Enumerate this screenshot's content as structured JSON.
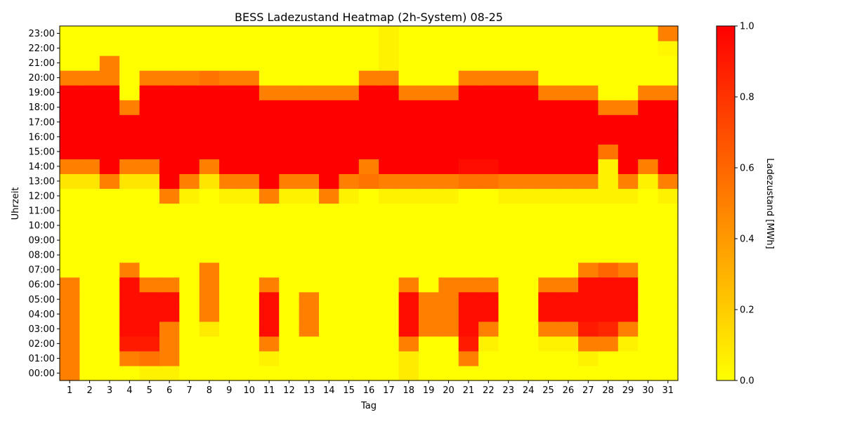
{
  "chart_data": {
    "type": "heatmap",
    "title": "BESS Ladezustand Heatmap (2h-System) 08-25",
    "xlabel": "Tag",
    "ylabel": "Uhrzeit",
    "x_categories": [
      "1",
      "2",
      "3",
      "4",
      "5",
      "6",
      "7",
      "8",
      "9",
      "10",
      "11",
      "12",
      "13",
      "14",
      "15",
      "16",
      "17",
      "18",
      "19",
      "20",
      "21",
      "22",
      "23",
      "24",
      "25",
      "26",
      "27",
      "28",
      "29",
      "30",
      "31"
    ],
    "y_categories": [
      "00:00",
      "01:00",
      "02:00",
      "03:00",
      "04:00",
      "05:00",
      "06:00",
      "07:00",
      "08:00",
      "09:00",
      "10:00",
      "11:00",
      "12:00",
      "13:00",
      "14:00",
      "15:00",
      "16:00",
      "17:00",
      "18:00",
      "19:00",
      "20:00",
      "21:00",
      "22:00",
      "23:00"
    ],
    "colorbar": {
      "label": "Ladezustand [MWh]",
      "range": [
        0.0,
        1.0
      ],
      "ticks": [
        "0.0",
        "0.2",
        "0.4",
        "0.6",
        "0.8",
        "1.0"
      ],
      "colormap": [
        "#ffff00",
        "#ff8000",
        "#ff0000"
      ]
    },
    "values_by_hour": [
      [
        0.5,
        0,
        0,
        0,
        0.05,
        0.05,
        0,
        0,
        0,
        0,
        0,
        0,
        0,
        0,
        0,
        0,
        0,
        0.08,
        0,
        0,
        0,
        0,
        0,
        0,
        0,
        0,
        0,
        0,
        0,
        0,
        0
      ],
      [
        0.5,
        0,
        0,
        0.5,
        0.55,
        0.5,
        0,
        0,
        0,
        0,
        0.05,
        0,
        0,
        0,
        0,
        0,
        0,
        0.08,
        0,
        0,
        0.5,
        0,
        0,
        0,
        0,
        0,
        0.05,
        0,
        0,
        0,
        0
      ],
      [
        0.5,
        0,
        0,
        0.9,
        0.9,
        0.5,
        0,
        0,
        0,
        0,
        0.5,
        0,
        0,
        0,
        0,
        0,
        0,
        0.5,
        0,
        0,
        0.9,
        0.05,
        0,
        0,
        0.05,
        0.05,
        0.5,
        0.5,
        0.05,
        0,
        0
      ],
      [
        0.5,
        0,
        0,
        0.95,
        0.95,
        0.5,
        0,
        0.08,
        0,
        0,
        0.95,
        0,
        0.5,
        0,
        0,
        0,
        0,
        0.95,
        0.5,
        0.5,
        0.95,
        0.5,
        0,
        0,
        0.5,
        0.5,
        0.9,
        0.85,
        0.5,
        0,
        0
      ],
      [
        0.5,
        0,
        0,
        0.95,
        0.95,
        0.95,
        0,
        0.5,
        0,
        0,
        0.95,
        0,
        0.5,
        0,
        0,
        0,
        0,
        0.95,
        0.5,
        0.5,
        0.95,
        0.95,
        0,
        0,
        0.95,
        0.95,
        0.95,
        0.95,
        0.95,
        0,
        0
      ],
      [
        0.5,
        0,
        0,
        0.95,
        0.95,
        0.95,
        0,
        0.5,
        0,
        0,
        0.95,
        0,
        0.5,
        0,
        0,
        0,
        0,
        0.95,
        0.5,
        0.5,
        0.95,
        0.95,
        0,
        0,
        0.95,
        0.95,
        0.95,
        0.95,
        0.95,
        0,
        0
      ],
      [
        0.5,
        0,
        0,
        0.95,
        0.5,
        0.5,
        0,
        0.5,
        0,
        0,
        0.5,
        0,
        0,
        0,
        0,
        0,
        0,
        0.5,
        0,
        0.5,
        0.5,
        0.5,
        0,
        0,
        0.5,
        0.5,
        0.95,
        0.95,
        0.95,
        0,
        0
      ],
      [
        0,
        0,
        0,
        0.5,
        0,
        0,
        0,
        0.5,
        0,
        0,
        0,
        0,
        0,
        0,
        0,
        0,
        0,
        0,
        0,
        0,
        0,
        0,
        0,
        0,
        0,
        0,
        0.5,
        0.6,
        0.5,
        0,
        0
      ],
      [
        0,
        0,
        0,
        0,
        0,
        0,
        0,
        0,
        0,
        0,
        0,
        0,
        0,
        0,
        0,
        0,
        0,
        0,
        0,
        0,
        0,
        0,
        0,
        0,
        0,
        0,
        0,
        0,
        0,
        0,
        0
      ],
      [
        0,
        0,
        0,
        0,
        0,
        0,
        0,
        0,
        0,
        0,
        0,
        0,
        0,
        0,
        0,
        0,
        0,
        0,
        0,
        0,
        0,
        0,
        0,
        0,
        0,
        0,
        0,
        0,
        0,
        0,
        0
      ],
      [
        0,
        0,
        0,
        0,
        0,
        0,
        0,
        0,
        0,
        0,
        0,
        0,
        0,
        0,
        0,
        0,
        0,
        0,
        0,
        0,
        0,
        0,
        0,
        0,
        0,
        0,
        0,
        0,
        0,
        0,
        0
      ],
      [
        0,
        0,
        0,
        0,
        0,
        0,
        0,
        0,
        0,
        0,
        0,
        0,
        0,
        0,
        0,
        0,
        0,
        0,
        0,
        0,
        0,
        0,
        0,
        0,
        0,
        0,
        0,
        0,
        0,
        0,
        0
      ],
      [
        0,
        0,
        0,
        0,
        0,
        0.5,
        0.05,
        0,
        0.05,
        0.05,
        0.5,
        0.05,
        0.05,
        0.5,
        0.05,
        0,
        0.05,
        0.05,
        0.05,
        0.05,
        0,
        0,
        0.05,
        0.05,
        0.05,
        0.05,
        0.05,
        0.05,
        0.05,
        0,
        0.05
      ],
      [
        0.1,
        0.1,
        0.5,
        0.1,
        0.1,
        1,
        0.5,
        0.1,
        0.5,
        0.5,
        1,
        0.5,
        0.5,
        1,
        0.5,
        0.55,
        0.5,
        0.5,
        0.5,
        0.5,
        0.55,
        0.55,
        0.5,
        0.5,
        0.5,
        0.5,
        0.5,
        0.05,
        0.5,
        0.05,
        0.5
      ],
      [
        0.5,
        0.5,
        1,
        0.5,
        0.5,
        1,
        1,
        0.5,
        1,
        1,
        1,
        1,
        1,
        1,
        1,
        0.5,
        1,
        1,
        1,
        1,
        0.95,
        0.95,
        1,
        1,
        1,
        1,
        1,
        0.05,
        1,
        0.5,
        1
      ],
      [
        1,
        1,
        1,
        1,
        1,
        1,
        1,
        1,
        1,
        1,
        1,
        1,
        1,
        1,
        1,
        1,
        1,
        1,
        1,
        1,
        1,
        1,
        1,
        1,
        1,
        1,
        1,
        0.55,
        1,
        1,
        1
      ],
      [
        1,
        1,
        1,
        1,
        1,
        1,
        1,
        1,
        1,
        1,
        1,
        1,
        1,
        1,
        1,
        1,
        1,
        1,
        1,
        1,
        1,
        1,
        1,
        1,
        1,
        1,
        1,
        1,
        1,
        1,
        1
      ],
      [
        1,
        1,
        1,
        1,
        1,
        1,
        1,
        1,
        1,
        1,
        1,
        1,
        1,
        1,
        1,
        1,
        1,
        1,
        1,
        1,
        1,
        1,
        1,
        1,
        1,
        1,
        1,
        1,
        1,
        1,
        1
      ],
      [
        1,
        1,
        1,
        0.5,
        1,
        1,
        1,
        1,
        1,
        1,
        1,
        1,
        1,
        1,
        1,
        1,
        1,
        1,
        1,
        1,
        1,
        1,
        1,
        1,
        1,
        1,
        1,
        0.5,
        0.5,
        1,
        1
      ],
      [
        1,
        1,
        1,
        0,
        1,
        1,
        1,
        1,
        1,
        1,
        0.5,
        0.5,
        0.5,
        0.5,
        0.5,
        1,
        1,
        0.5,
        0.5,
        0.5,
        1,
        1,
        1,
        1,
        0.5,
        0.5,
        0.5,
        0,
        0,
        0.5,
        0.5
      ],
      [
        0.5,
        0.5,
        0.5,
        0,
        0.5,
        0.5,
        0.5,
        0.55,
        0.5,
        0.5,
        0,
        0,
        0,
        0,
        0,
        0.5,
        0.5,
        0,
        0,
        0,
        0.5,
        0.5,
        0.5,
        0.5,
        0,
        0,
        0,
        0,
        0,
        0,
        0
      ],
      [
        0,
        0,
        0.5,
        0,
        0,
        0,
        0,
        0,
        0,
        0,
        0,
        0,
        0,
        0,
        0,
        0,
        0.05,
        0,
        0,
        0,
        0,
        0,
        0,
        0,
        0,
        0,
        0,
        0,
        0,
        0,
        0
      ],
      [
        0,
        0,
        0,
        0,
        0,
        0,
        0,
        0,
        0,
        0,
        0,
        0,
        0,
        0,
        0,
        0,
        0.05,
        0,
        0,
        0,
        0,
        0,
        0,
        0,
        0,
        0,
        0,
        0,
        0,
        0,
        0.03
      ],
      [
        0,
        0,
        0,
        0,
        0,
        0,
        0,
        0,
        0,
        0,
        0,
        0,
        0,
        0,
        0,
        0,
        0.05,
        0,
        0,
        0,
        0,
        0,
        0,
        0,
        0,
        0,
        0,
        0,
        0,
        0,
        0.5
      ]
    ]
  }
}
